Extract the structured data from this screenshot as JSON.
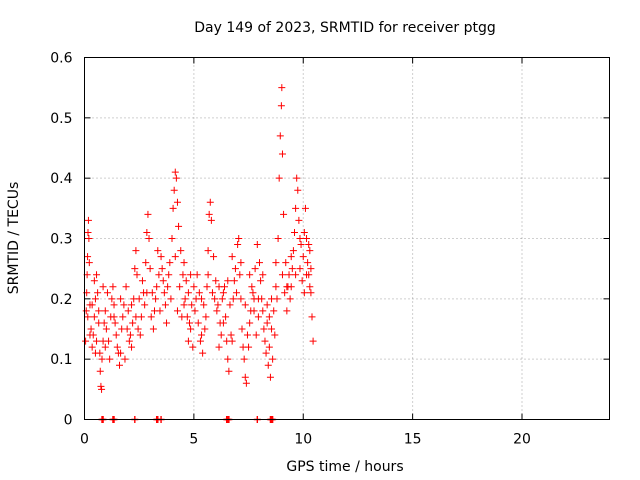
{
  "chart_data": {
    "type": "scatter",
    "title": "Day 149 of 2023, SRMTID for receiver ptgg",
    "xlabel": "GPS time / hours",
    "ylabel": "SRMTID / TECUs",
    "xlim": [
      0,
      24
    ],
    "ylim": [
      0,
      0.6
    ],
    "xticks": [
      "0",
      "5",
      "10",
      "15",
      "20"
    ],
    "yticks": [
      "0",
      "0.1",
      "0.2",
      "0.3",
      "0.4",
      "0.5",
      "0.6"
    ],
    "grid": true,
    "marker": "+",
    "color": "#ff0000",
    "series": [
      {
        "name": "SRMTID",
        "points": [
          [
            0.05,
            0.13
          ],
          [
            0.08,
            0.18
          ],
          [
            0.1,
            0.21
          ],
          [
            0.12,
            0.24
          ],
          [
            0.14,
            0.27
          ],
          [
            0.16,
            0.31
          ],
          [
            0.18,
            0.33
          ],
          [
            0.2,
            0.3
          ],
          [
            0.22,
            0.26
          ],
          [
            0.25,
            0.19
          ],
          [
            0.3,
            0.15
          ],
          [
            0.35,
            0.12
          ],
          [
            0.4,
            0.14
          ],
          [
            0.45,
            0.17
          ],
          [
            0.5,
            0.2
          ],
          [
            0.55,
            0.24
          ],
          [
            0.6,
            0.21
          ],
          [
            0.65,
            0.16
          ],
          [
            0.7,
            0.11
          ],
          [
            0.72,
            0.08
          ],
          [
            0.75,
            0.055
          ],
          [
            0.78,
            0.05
          ],
          [
            0.8,
            0.1
          ],
          [
            0.85,
            0.13
          ],
          [
            0.9,
            0.16
          ],
          [
            0.95,
            0.18
          ],
          [
            1.0,
            0.15
          ],
          [
            1.1,
            0.13
          ],
          [
            1.2,
            0.17
          ],
          [
            1.25,
            0.2
          ],
          [
            1.3,
            0.22
          ],
          [
            1.35,
            0.19
          ],
          [
            1.4,
            0.16
          ],
          [
            1.5,
            0.12
          ],
          [
            1.6,
            0.09
          ],
          [
            1.65,
            0.11
          ],
          [
            1.7,
            0.15
          ],
          [
            1.8,
            0.19
          ],
          [
            1.9,
            0.22
          ],
          [
            2.0,
            0.18
          ],
          [
            2.1,
            0.14
          ],
          [
            2.15,
            0.12
          ],
          [
            2.2,
            0.16
          ],
          [
            2.25,
            0.2
          ],
          [
            2.3,
            0.25
          ],
          [
            2.35,
            0.28
          ],
          [
            2.4,
            0.24
          ],
          [
            2.5,
            0.2
          ],
          [
            2.6,
            0.17
          ],
          [
            2.7,
            0.21
          ],
          [
            2.8,
            0.26
          ],
          [
            2.85,
            0.31
          ],
          [
            2.9,
            0.34
          ],
          [
            2.95,
            0.3
          ],
          [
            3.0,
            0.25
          ],
          [
            3.1,
            0.21
          ],
          [
            3.2,
            0.18
          ],
          [
            3.3,
            0.22
          ],
          [
            3.4,
            0.24
          ],
          [
            3.5,
            0.27
          ],
          [
            3.6,
            0.23
          ],
          [
            3.7,
            0.19
          ],
          [
            3.8,
            0.22
          ],
          [
            3.9,
            0.26
          ],
          [
            4.0,
            0.3
          ],
          [
            4.05,
            0.35
          ],
          [
            4.1,
            0.38
          ],
          [
            4.15,
            0.41
          ],
          [
            4.2,
            0.4
          ],
          [
            4.25,
            0.36
          ],
          [
            4.3,
            0.32
          ],
          [
            4.4,
            0.28
          ],
          [
            4.5,
            0.24
          ],
          [
            4.6,
            0.2
          ],
          [
            4.7,
            0.17
          ],
          [
            4.75,
            0.13
          ],
          [
            4.8,
            0.16
          ],
          [
            4.9,
            0.19
          ],
          [
            5.0,
            0.22
          ],
          [
            5.1,
            0.2
          ],
          [
            5.2,
            0.16
          ],
          [
            5.3,
            0.13
          ],
          [
            5.4,
            0.11
          ],
          [
            5.5,
            0.15
          ],
          [
            5.6,
            0.22
          ],
          [
            5.65,
            0.28
          ],
          [
            5.7,
            0.34
          ],
          [
            5.75,
            0.36
          ],
          [
            5.8,
            0.33
          ],
          [
            5.9,
            0.27
          ],
          [
            6.0,
            0.23
          ],
          [
            6.1,
            0.19
          ],
          [
            6.2,
            0.16
          ],
          [
            6.3,
            0.2
          ],
          [
            6.4,
            0.22
          ],
          [
            6.5,
            0.13
          ],
          [
            6.55,
            0.1
          ],
          [
            6.6,
            0.08
          ],
          [
            6.7,
            0.14
          ],
          [
            6.8,
            0.2
          ],
          [
            6.9,
            0.25
          ],
          [
            7.0,
            0.29
          ],
          [
            7.05,
            0.3
          ],
          [
            7.1,
            0.24
          ],
          [
            7.2,
            0.15
          ],
          [
            7.3,
            0.1
          ],
          [
            7.35,
            0.07
          ],
          [
            7.4,
            0.06
          ],
          [
            7.5,
            0.12
          ],
          [
            7.6,
            0.18
          ],
          [
            7.7,
            0.21
          ],
          [
            7.8,
            0.25
          ],
          [
            7.9,
            0.29
          ],
          [
            8.0,
            0.26
          ],
          [
            8.1,
            0.2
          ],
          [
            8.2,
            0.15
          ],
          [
            8.3,
            0.11
          ],
          [
            8.4,
            0.09
          ],
          [
            8.5,
            0.07
          ],
          [
            8.6,
            0.1
          ],
          [
            8.7,
            0.14
          ],
          [
            8.8,
            0.2
          ],
          [
            8.85,
            0.3
          ],
          [
            8.9,
            0.4
          ],
          [
            8.95,
            0.47
          ],
          [
            9.0,
            0.52
          ],
          [
            9.02,
            0.55
          ],
          [
            9.05,
            0.44
          ],
          [
            9.1,
            0.34
          ],
          [
            9.2,
            0.26
          ],
          [
            9.3,
            0.22
          ],
          [
            9.4,
            0.2
          ],
          [
            9.5,
            0.25
          ],
          [
            9.6,
            0.31
          ],
          [
            9.65,
            0.35
          ],
          [
            9.7,
            0.4
          ],
          [
            9.75,
            0.38
          ],
          [
            9.8,
            0.33
          ],
          [
            9.9,
            0.29
          ],
          [
            10.0,
            0.27
          ],
          [
            10.05,
            0.31
          ],
          [
            10.1,
            0.35
          ],
          [
            10.15,
            0.3
          ],
          [
            10.2,
            0.26
          ],
          [
            10.25,
            0.24
          ],
          [
            10.3,
            0.28
          ],
          [
            10.35,
            0.21
          ],
          [
            10.4,
            0.17
          ],
          [
            10.45,
            0.13
          ],
          [
            0.5,
            0.11
          ],
          [
            0.15,
            0.17
          ],
          [
            0.35,
            0.19
          ],
          [
            0.55,
            0.13
          ],
          [
            1.05,
            0.21
          ],
          [
            1.45,
            0.14
          ],
          [
            1.75,
            0.17
          ],
          [
            2.05,
            0.13
          ],
          [
            2.45,
            0.15
          ],
          [
            2.75,
            0.19
          ],
          [
            3.05,
            0.17
          ],
          [
            3.25,
            0.2
          ],
          [
            3.45,
            0.18
          ],
          [
            3.65,
            0.21
          ],
          [
            3.85,
            0.24
          ],
          [
            4.35,
            0.22
          ],
          [
            4.55,
            0.19
          ],
          [
            4.65,
            0.23
          ],
          [
            4.85,
            0.15
          ],
          [
            5.05,
            0.18
          ],
          [
            5.25,
            0.21
          ],
          [
            5.45,
            0.19
          ],
          [
            5.55,
            0.17
          ],
          [
            5.85,
            0.21
          ],
          [
            6.05,
            0.18
          ],
          [
            6.25,
            0.14
          ],
          [
            6.45,
            0.17
          ],
          [
            6.65,
            0.19
          ],
          [
            6.85,
            0.23
          ],
          [
            7.15,
            0.2
          ],
          [
            7.45,
            0.14
          ],
          [
            7.55,
            0.16
          ],
          [
            7.65,
            0.22
          ],
          [
            7.75,
            0.18
          ],
          [
            7.85,
            0.14
          ],
          [
            7.95,
            0.2
          ],
          [
            8.05,
            0.23
          ],
          [
            8.15,
            0.18
          ],
          [
            8.25,
            0.13
          ],
          [
            8.35,
            0.16
          ],
          [
            8.45,
            0.12
          ],
          [
            8.55,
            0.15
          ],
          [
            8.65,
            0.18
          ],
          [
            8.75,
            0.22
          ],
          [
            9.15,
            0.21
          ],
          [
            9.25,
            0.18
          ],
          [
            9.35,
            0.24
          ],
          [
            9.45,
            0.22
          ],
          [
            9.55,
            0.28
          ],
          [
            9.85,
            0.25
          ],
          [
            9.95,
            0.23
          ],
          [
            10.05,
            0.21
          ],
          [
            10.25,
            0.29
          ],
          [
            10.35,
            0.25
          ],
          [
            1.15,
            0.1
          ],
          [
            1.55,
            0.11
          ],
          [
            1.85,
            0.1
          ],
          [
            2.55,
            0.14
          ],
          [
            3.15,
            0.15
          ],
          [
            3.75,
            0.16
          ],
          [
            4.45,
            0.17
          ],
          [
            4.95,
            0.12
          ],
          [
            5.35,
            0.14
          ],
          [
            6.15,
            0.12
          ],
          [
            6.35,
            0.16
          ],
          [
            6.75,
            0.13
          ],
          [
            7.25,
            0.12
          ],
          [
            8.45,
            0.17
          ],
          [
            0.25,
            0.14
          ],
          [
            0.45,
            0.23
          ],
          [
            0.65,
            0.18
          ],
          [
            0.85,
            0.22
          ],
          [
            0.95,
            0.12
          ],
          [
            1.35,
            0.17
          ],
          [
            1.65,
            0.2
          ],
          [
            1.95,
            0.15
          ],
          [
            2.15,
            0.19
          ],
          [
            2.35,
            0.17
          ],
          [
            2.65,
            0.23
          ],
          [
            2.85,
            0.21
          ],
          [
            3.35,
            0.28
          ],
          [
            3.55,
            0.25
          ],
          [
            3.95,
            0.2
          ],
          [
            4.15,
            0.27
          ],
          [
            4.25,
            0.18
          ],
          [
            4.55,
            0.26
          ],
          [
            4.75,
            0.21
          ],
          [
            4.85,
            0.24
          ],
          [
            5.15,
            0.24
          ],
          [
            5.35,
            0.2
          ],
          [
            5.65,
            0.24
          ],
          [
            5.95,
            0.2
          ],
          [
            6.15,
            0.22
          ],
          [
            6.35,
            0.21
          ],
          [
            6.55,
            0.23
          ],
          [
            6.75,
            0.27
          ],
          [
            6.95,
            0.21
          ],
          [
            7.15,
            0.26
          ],
          [
            7.35,
            0.19
          ],
          [
            7.55,
            0.24
          ],
          [
            7.75,
            0.2
          ],
          [
            7.95,
            0.17
          ],
          [
            8.15,
            0.24
          ],
          [
            8.35,
            0.19
          ],
          [
            8.55,
            0.2
          ],
          [
            8.75,
            0.26
          ],
          [
            9.05,
            0.24
          ],
          [
            9.25,
            0.22
          ],
          [
            9.45,
            0.27
          ],
          [
            9.65,
            0.24
          ],
          [
            9.85,
            0.3
          ],
          [
            10.15,
            0.24
          ],
          [
            10.3,
            0.22
          ]
        ]
      }
    ],
    "zero_points": [
      0.8,
      0.85,
      1.3,
      1.35,
      2.3,
      3.3,
      3.35,
      3.5,
      6.5,
      6.55,
      6.6,
      7.9,
      8.5,
      8.55,
      8.6
    ]
  }
}
